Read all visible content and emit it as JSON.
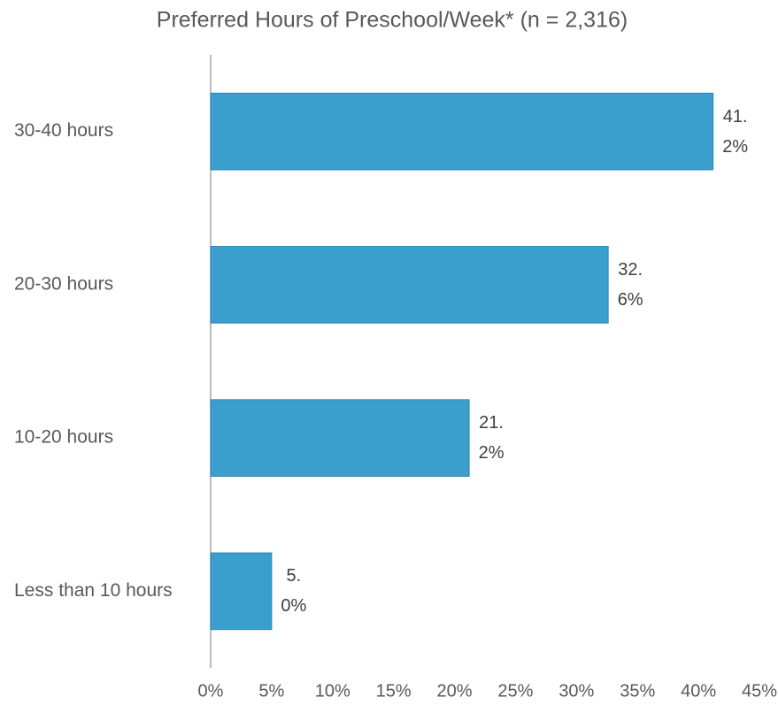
{
  "chart_data": {
    "type": "bar",
    "orientation": "horizontal",
    "title": "Preferred Hours of Preschool/Week* (n = 2,316)",
    "categories": [
      "30-40 hours",
      "20-30 hours",
      "10-20 hours",
      "Less than 10 hours"
    ],
    "values": [
      41.2,
      32.6,
      21.2,
      5.0
    ],
    "value_labels": [
      "41.2%",
      "32.6%",
      "21.2%",
      "5.0%"
    ],
    "color": "#3a9fcd",
    "xlim": [
      0,
      45
    ],
    "xticks": [
      {
        "value": 0,
        "label": "0%"
      },
      {
        "value": 5,
        "label": "5%"
      },
      {
        "value": 10,
        "label": "10%"
      },
      {
        "value": 15,
        "label": "15%"
      },
      {
        "value": 20,
        "label": "20%"
      },
      {
        "value": 25,
        "label": "25%"
      },
      {
        "value": 30,
        "label": "30%"
      },
      {
        "value": 35,
        "label": "35%"
      },
      {
        "value": 40,
        "label": "40%"
      },
      {
        "value": 45,
        "label": "45%"
      }
    ],
    "grid": false
  }
}
